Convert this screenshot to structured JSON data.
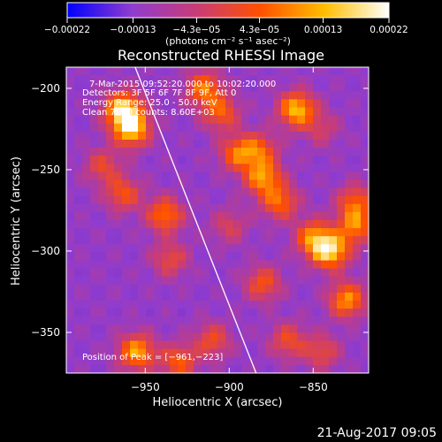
{
  "chart_data": {
    "type": "heatmap",
    "title": "Reconstructed RHESSI Image",
    "xlabel": "Heliocentric X (arcsec)",
    "ylabel": "Heliocentric Y (arcsec)",
    "xlim": [
      -997,
      -817
    ],
    "ylim": [
      -375,
      -187
    ],
    "x_ticks": [
      -950,
      -900,
      -850
    ],
    "x_tick_labels": [
      "−950",
      "−900",
      "−850"
    ],
    "y_ticks": [
      -200,
      -250,
      -300,
      -350
    ],
    "y_tick_labels": [
      "−200",
      "−250",
      "−300",
      "−350"
    ],
    "annotations": [
      "7-Mar-2015 09:52:20.000 to 10:02:20.000",
      "Detectors: 3F 5F 6F 7F 8F 9F, Att 0",
      "Energy Range: 25.0 - 50.0 keV",
      "Clean  7000 counts: 8.60E+03",
      "Position of Peak = [−961,−223]"
    ],
    "colorbar": {
      "ticks": [
        -0.00022,
        -0.00013,
        -4.3e-05,
        4.3e-05,
        0.00013,
        0.00022
      ],
      "tick_labels": [
        "−0.00022",
        "−0.00013",
        "−4.3e−05",
        "4.3e−05",
        "0.00013",
        "0.00022"
      ],
      "label": "(photons cm⁻² s⁻¹ asec⁻²)",
      "colors": [
        "#0000ff",
        "#8f3ccf",
        "#c83c78",
        "#ff5000",
        "#ffbe00",
        "#ffffff"
      ]
    },
    "limb_line": {
      "x": [
        -956,
        -884
      ],
      "y": [
        -187,
        -375
      ]
    },
    "peak": [
      -961,
      -223
    ],
    "sources": [
      {
        "x": -963,
        "y": -213,
        "value": 0.00022
      },
      {
        "x": -958,
        "y": -225,
        "value": 0.0002
      },
      {
        "x": -915,
        "y": -200,
        "value": 0.00014
      },
      {
        "x": -905,
        "y": -215,
        "value": 0.00012
      },
      {
        "x": -860,
        "y": -213,
        "value": 0.00019
      },
      {
        "x": -895,
        "y": -240,
        "value": 0.00013
      },
      {
        "x": -880,
        "y": -255,
        "value": 0.00016
      },
      {
        "x": -870,
        "y": -270,
        "value": 0.00013
      },
      {
        "x": -882,
        "y": -238,
        "value": 0.00011
      },
      {
        "x": -840,
        "y": -300,
        "value": 0.00021
      },
      {
        "x": -850,
        "y": -292,
        "value": 0.00015
      },
      {
        "x": -825,
        "y": -285,
        "value": 0.00014
      },
      {
        "x": -830,
        "y": -330,
        "value": 0.00016
      },
      {
        "x": -825,
        "y": -270,
        "value": 0.00012
      },
      {
        "x": -975,
        "y": -248,
        "value": 9e-05
      },
      {
        "x": -963,
        "y": -265,
        "value": 0.00011
      },
      {
        "x": -938,
        "y": -278,
        "value": 0.00014
      },
      {
        "x": -935,
        "y": -305,
        "value": 9e-05
      },
      {
        "x": -955,
        "y": -362,
        "value": 0.00017
      },
      {
        "x": -930,
        "y": -368,
        "value": 0.00012
      },
      {
        "x": -910,
        "y": -355,
        "value": 0.0001
      },
      {
        "x": -880,
        "y": -320,
        "value": 0.00011
      },
      {
        "x": -865,
        "y": -355,
        "value": 0.0001
      },
      {
        "x": -900,
        "y": -285,
        "value": 7e-05
      },
      {
        "x": -845,
        "y": -225,
        "value": 6e-05
      },
      {
        "x": -845,
        "y": -362,
        "value": 9e-05
      }
    ]
  },
  "footer": {
    "date": "21-Aug-2017 09:05"
  }
}
